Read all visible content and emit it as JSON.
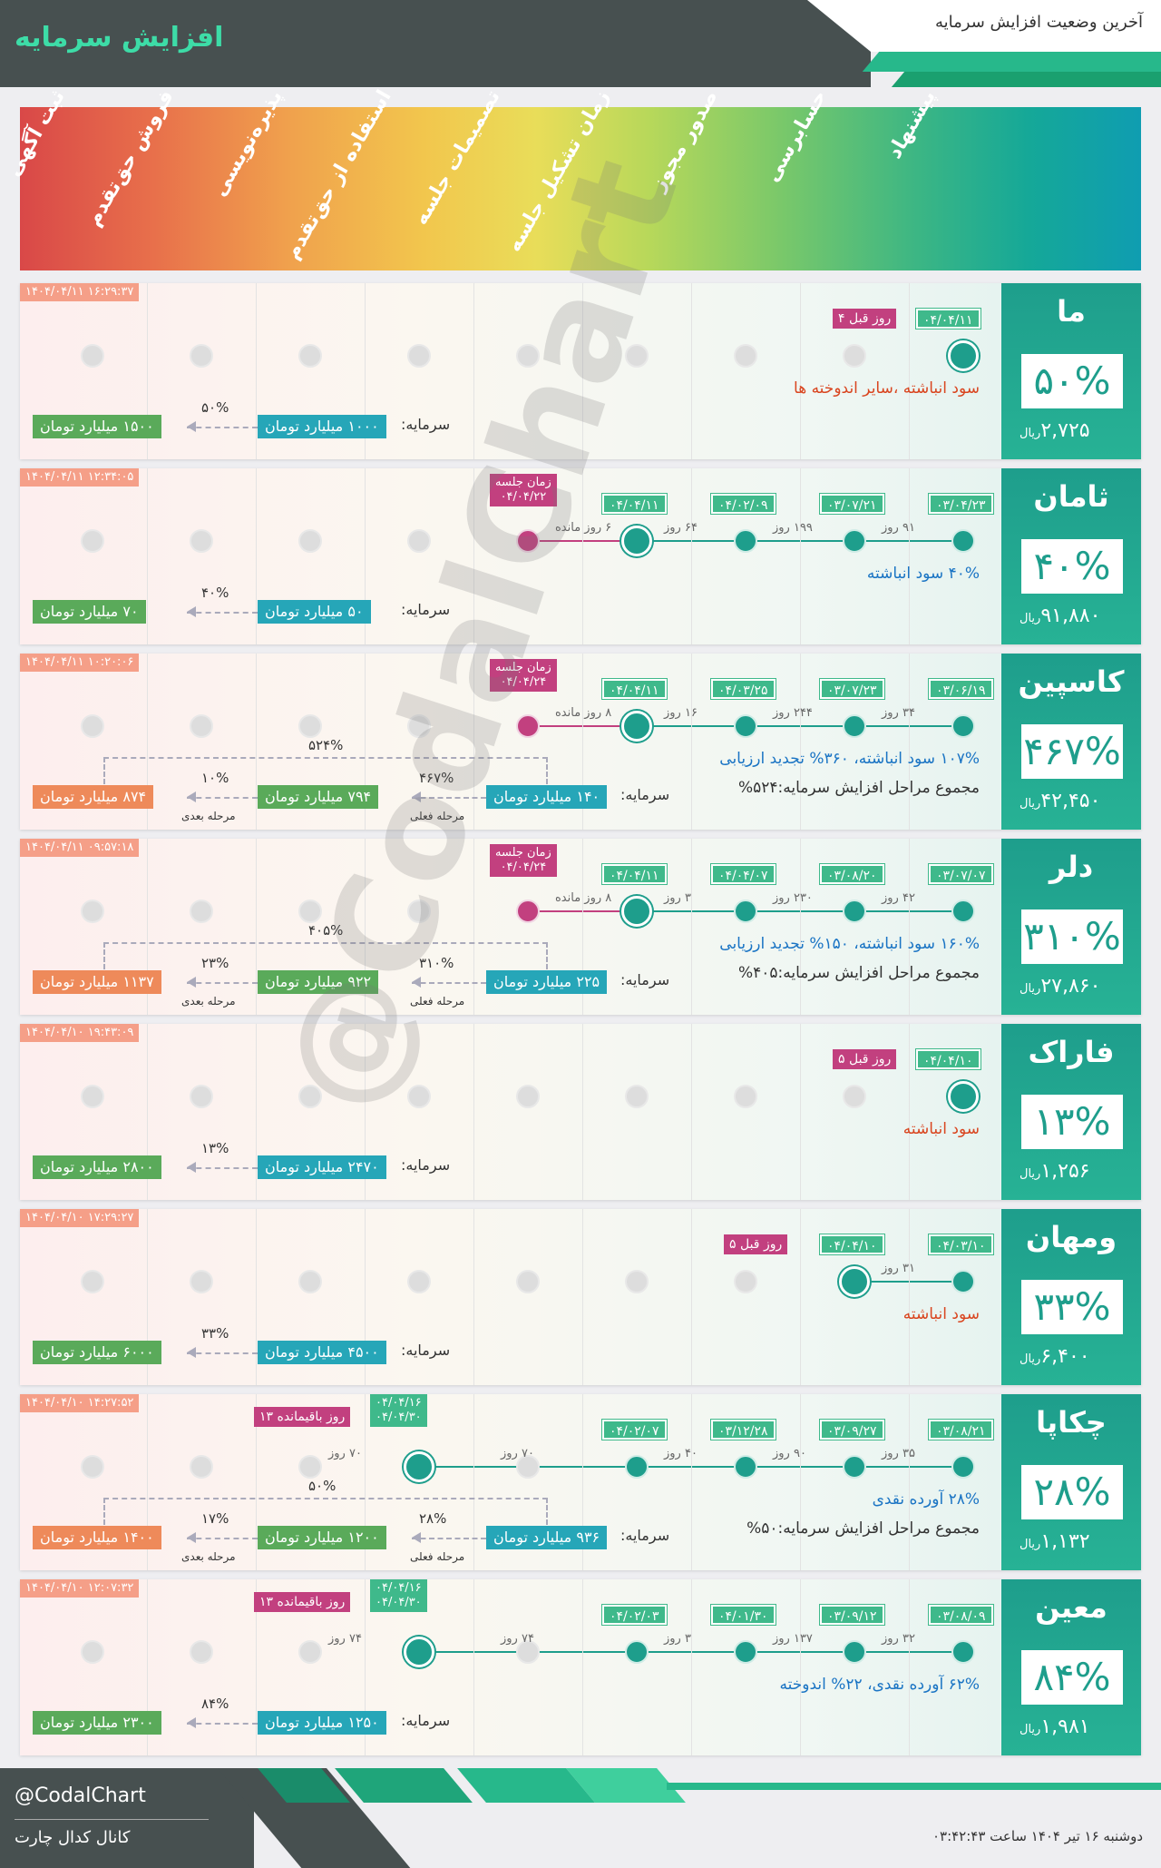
{
  "header": {
    "brand": "افزایش سرمایه",
    "title": "آخرین وضعیت افزایش سرمایه"
  },
  "stages": [
    "ثبت آگهی",
    "فروش حق‌تقدم",
    "پذیره‌نویسی",
    "استفاده از حق‌تقدم",
    "تصمیمات جلسه",
    "زمان تشکیل جلسه",
    "صدور مجوز",
    "حسابرسی",
    "پیشنهاد"
  ],
  "watermark": "@CodalChart",
  "footer": {
    "handle": "@CodalChart",
    "channel": "کانال کدال چارت",
    "date": "دوشنبه ۱۶ تیر ۱۴۰۴ ساعت ۰۳:۴۲:۴۳"
  },
  "cards": [
    {
      "name": "ما",
      "pct": "۵۰%",
      "price": "۲,۷۲۵",
      "currency": "ریال",
      "ts": "۱۴۰۴/۰۴/۱۱ ۱۶:۲۹:۳۷",
      "tag1": "۰۴/۰۴/۱۱",
      "tag2": "۴ روز قبل",
      "desc": "سود انباشته ،سایر اندوخته ها",
      "cap_label": "سرمایه:",
      "cap_from": "۱۰۰۰ میلیارد تومان",
      "cap_to": "۱۵۰۰ میلیارد تومان",
      "cap_pct": "۵۰%"
    },
    {
      "name": "ثامان",
      "pct": "۴۰%",
      "price": "۹۱,۸۸۰",
      "currency": "ریال",
      "ts": "۱۴۰۴/۰۴/۱۱ ۱۲:۳۴:۰۵",
      "tags": [
        "۰۳/۰۴/۲۳",
        "۰۳/۰۷/۲۱",
        "۰۴/۰۲/۰۹",
        "۰۴/۰۴/۱۱"
      ],
      "days": [
        "۹۱ روز",
        "۱۹۹ روز",
        "۶۴ روز",
        "۶ روز مانده"
      ],
      "meet_label": "زمان جلسه",
      "meet_date": "۰۴/۰۴/۲۲",
      "desc": "۴۰% سود انباشته",
      "cap_label": "سرمایه:",
      "cap_from": "۵۰ میلیارد تومان",
      "cap_to": "۷۰ میلیارد تومان",
      "cap_pct": "۴۰%"
    },
    {
      "name": "کاسپین",
      "pct": "۴۶۷%",
      "price": "۴۲,۴۵۰",
      "currency": "ریال",
      "ts": "۱۴۰۴/۰۴/۱۱ ۱۰:۲۰:۰۶",
      "tags": [
        "۰۳/۰۶/۱۹",
        "۰۳/۰۷/۲۳",
        "۰۴/۰۳/۲۵",
        "۰۴/۰۴/۱۱"
      ],
      "days": [
        "۳۴ روز",
        "۲۴۴ روز",
        "۱۶ روز",
        "۸ روز مانده"
      ],
      "meet_label": "زمان جلسه",
      "meet_date": "۰۴/۰۴/۲۴",
      "desc": "۱۰۷% سود انباشته، ۳۶۰% تجدید ارزیابی",
      "desc2": "مجموع مراحل افزایش سرمایه:۵۲۴%",
      "cap_label": "سرمایه:",
      "cap_from": "۱۴۰ میلیارد تومان",
      "cap_mid": "۷۹۴ میلیارد تومان",
      "cap_to": "۸۷۴ میلیارد تومان",
      "pct1": "۴۶۷%",
      "pct2": "۱۰%",
      "pct_total": "۵۲۴%",
      "cur_label": "مرحله فعلی",
      "next_label": "مرحله بعدی"
    },
    {
      "name": "دلر",
      "pct": "۳۱۰%",
      "price": "۲۷,۸۶۰",
      "currency": "ریال",
      "ts": "۱۴۰۴/۰۴/۱۱ ۰۹:۵۷:۱۸",
      "tags": [
        "۰۳/۰۷/۰۷",
        "۰۳/۰۸/۲۰",
        "۰۴/۰۴/۰۷",
        "۰۴/۰۴/۱۱"
      ],
      "days": [
        "۴۲ روز",
        "۲۳۰ روز",
        "۳ روز",
        "۸ روز مانده"
      ],
      "meet_label": "زمان جلسه",
      "meet_date": "۰۴/۰۴/۲۴",
      "desc": "۱۶۰% سود انباشته، ۱۵۰% تجدید ارزیابی",
      "desc2": "مجموع مراحل افزایش سرمایه:۴۰۵%",
      "cap_label": "سرمایه:",
      "cap_from": "۲۲۵ میلیارد تومان",
      "cap_mid": "۹۲۲ میلیارد تومان",
      "cap_to": "۱۱۳۷ میلیارد تومان",
      "pct1": "۳۱۰%",
      "pct2": "۲۳%",
      "pct_total": "۴۰۵%",
      "cur_label": "مرحله فعلی",
      "next_label": "مرحله بعدی"
    },
    {
      "name": "فاراک",
      "pct": "۱۳%",
      "price": "۱,۲۵۶",
      "currency": "ریال",
      "ts": "۱۴۰۴/۰۴/۱۰ ۱۹:۴۳:۰۹",
      "tag1": "۰۴/۰۴/۱۰",
      "tag2": "۵ روز قبل",
      "desc": "سود انباشته",
      "cap_label": "سرمایه:",
      "cap_from": "۲۴۷۰ میلیارد تومان",
      "cap_to": "۲۸۰۰ میلیارد تومان",
      "cap_pct": "۱۳%"
    },
    {
      "name": "ومهان",
      "pct": "۳۳%",
      "price": "۶,۴۰۰",
      "currency": "ریال",
      "ts": "۱۴۰۴/۰۴/۱۰ ۱۷:۲۹:۲۷",
      "tags": [
        "۰۴/۰۳/۱۰",
        "۰۴/۰۴/۱۰"
      ],
      "days": [
        "۳۱ روز"
      ],
      "tag2": "۵ روز قبل",
      "desc": "سود انباشته",
      "cap_label": "سرمایه:",
      "cap_from": "۴۵۰۰ میلیارد تومان",
      "cap_to": "۶۰۰۰ میلیارد تومان",
      "cap_pct": "۳۳%"
    },
    {
      "name": "چکاپا",
      "pct": "۲۸%",
      "price": "۱,۱۳۲",
      "currency": "ریال",
      "ts": "۱۴۰۴/۰۴/۱۰ ۱۴:۲۷:۵۲",
      "tags": [
        "۰۳/۰۸/۲۱",
        "۰۳/۰۹/۲۷",
        "۰۳/۱۲/۲۸",
        "۰۴/۰۲/۰۷"
      ],
      "days": [
        "۳۵ روز",
        "۹۰ روز",
        "۴۰ روز",
        "۷۰ روز"
      ],
      "tagA": "۰۴/۰۴/۱۶",
      "tagB": "۰۴/۰۴/۳۰",
      "remain": "۱۳ روز باقیمانده",
      "desc": "۲۸% آورده نقدی",
      "desc2": "مجموع مراحل افزایش سرمایه:۵۰%",
      "cap_label": "سرمایه:",
      "cap_from": "۹۳۶ میلیارد تومان",
      "cap_mid": "۱۲۰۰ میلیارد تومان",
      "cap_to": "۱۴۰۰ میلیارد تومان",
      "pct1": "۲۸%",
      "pct2": "۱۷%",
      "pct_total": "۵۰%",
      "cur_label": "مرحله فعلی",
      "next_label": "مرحله بعدی"
    },
    {
      "name": "معین",
      "pct": "۸۴%",
      "price": "۱,۹۸۱",
      "currency": "ریال",
      "ts": "۱۴۰۴/۰۴/۱۰ ۱۲:۰۷:۳۲",
      "tags": [
        "۰۳/۰۸/۰۹",
        "۰۳/۰۹/۱۲",
        "۰۴/۰۱/۳۰",
        "۰۴/۰۲/۰۳"
      ],
      "days": [
        "۳۲ روز",
        "۱۳۷ روز",
        "۳ روز",
        "۷۴ روز"
      ],
      "tagA": "۰۴/۰۴/۱۶",
      "tagB": "۰۴/۰۴/۳۰",
      "remain": "۱۳ روز باقیمانده",
      "desc": "۶۲% آورده نقدی، ۲۲% اندوخته",
      "cap_label": "سرمایه:",
      "cap_from": "۱۲۵۰ میلیارد تومان",
      "cap_to": "۲۳۰۰ میلیارد تومان",
      "cap_pct": "۸۴%"
    }
  ]
}
